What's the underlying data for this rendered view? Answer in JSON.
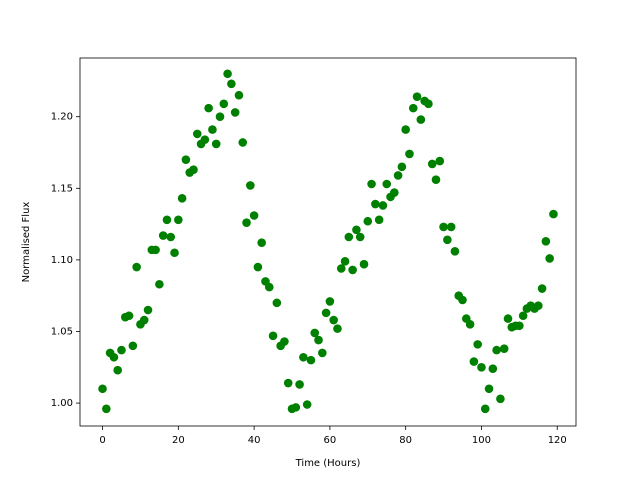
{
  "chart_data": {
    "type": "scatter",
    "xlabel": "Time (Hours)",
    "ylabel": "Normalised Flux",
    "color": "#008000",
    "x": [
      0,
      1,
      2,
      3,
      4,
      5,
      6,
      7,
      8,
      9,
      10,
      11,
      12,
      13,
      14,
      15,
      16,
      17,
      18,
      19,
      20,
      21,
      22,
      23,
      24,
      25,
      26,
      27,
      28,
      29,
      30,
      31,
      32,
      33,
      34,
      35,
      36,
      37,
      38,
      39,
      40,
      41,
      42,
      43,
      44,
      45,
      46,
      47,
      48,
      49,
      50,
      51,
      52,
      53,
      54,
      55,
      56,
      57,
      58,
      59,
      60,
      61,
      62,
      63,
      64,
      65,
      66,
      67,
      68,
      69,
      70,
      71,
      72,
      73,
      74,
      75,
      76,
      77,
      78,
      79,
      80,
      81,
      82,
      83,
      84,
      85,
      86,
      87,
      88,
      89,
      90,
      91,
      92,
      93,
      94,
      95,
      96,
      97,
      98,
      99,
      100,
      101,
      102,
      103,
      104,
      105,
      106,
      107,
      108,
      109,
      110,
      111,
      112,
      113,
      114,
      115,
      116,
      117,
      118,
      119
    ],
    "values": [
      1.01,
      0.996,
      1.035,
      1.032,
      1.023,
      1.037,
      1.06,
      1.061,
      1.04,
      1.095,
      1.055,
      1.058,
      1.065,
      1.107,
      1.107,
      1.083,
      1.117,
      1.128,
      1.116,
      1.105,
      1.128,
      1.143,
      1.17,
      1.161,
      1.163,
      1.188,
      1.181,
      1.184,
      1.206,
      1.191,
      1.181,
      1.2,
      1.209,
      1.23,
      1.223,
      1.203,
      1.215,
      1.182,
      1.126,
      1.152,
      1.131,
      1.095,
      1.112,
      1.085,
      1.081,
      1.047,
      1.07,
      1.04,
      1.043,
      1.014,
      0.996,
      0.997,
      1.013,
      1.032,
      0.999,
      1.03,
      1.049,
      1.044,
      1.035,
      1.063,
      1.071,
      1.058,
      1.052,
      1.094,
      1.099,
      1.116,
      1.093,
      1.121,
      1.116,
      1.097,
      1.127,
      1.153,
      1.139,
      1.128,
      1.138,
      1.153,
      1.144,
      1.147,
      1.159,
      1.165,
      1.191,
      1.174,
      1.206,
      1.214,
      1.198,
      1.211,
      1.209,
      1.167,
      1.156,
      1.169,
      1.123,
      1.114,
      1.123,
      1.106,
      1.075,
      1.072,
      1.059,
      1.055,
      1.029,
      1.041,
      1.025,
      0.996,
      1.01,
      1.024,
      1.037,
      1.003,
      1.038,
      1.059,
      1.053,
      1.054,
      1.054,
      1.061,
      1.066,
      1.068,
      1.066,
      1.068,
      1.08,
      1.113,
      1.101,
      1.132
    ],
    "xlim": [
      -5.95,
      124.95
    ],
    "xticks": [
      0,
      20,
      40,
      60,
      80,
      100,
      120
    ],
    "ylim": [
      0.984,
      1.241
    ],
    "yticks": [
      {
        "value": 1.0,
        "label": "1.00"
      },
      {
        "value": 1.05,
        "label": "1.05"
      },
      {
        "value": 1.1,
        "label": "1.10"
      },
      {
        "value": 1.15,
        "label": "1.15"
      },
      {
        "value": 1.2,
        "label": "1.20"
      }
    ]
  }
}
